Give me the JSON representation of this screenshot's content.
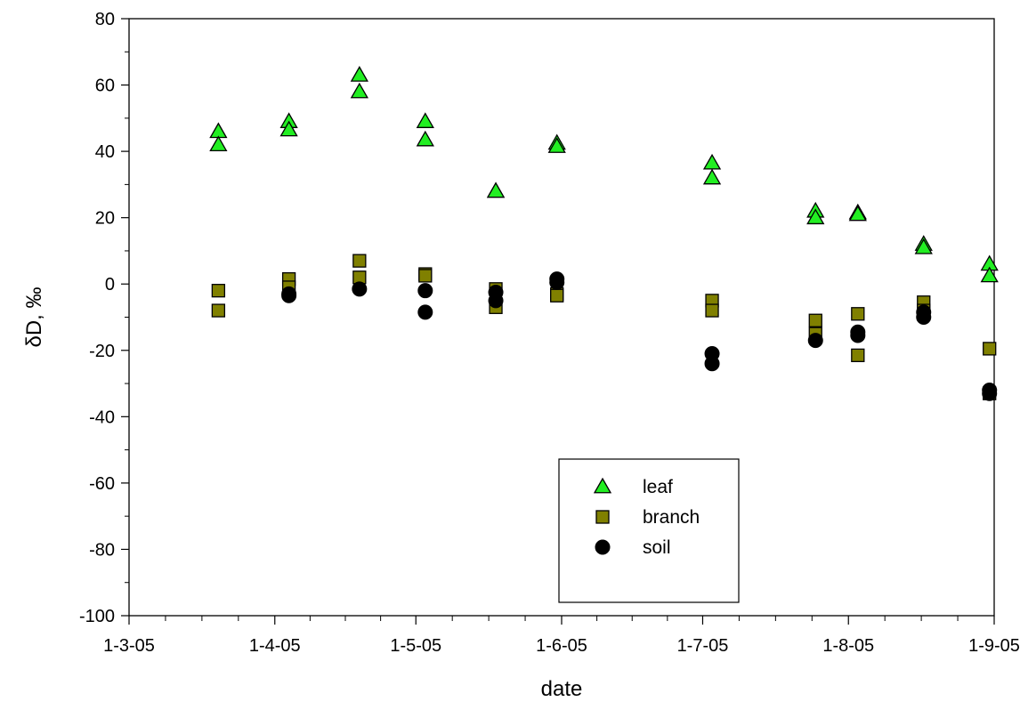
{
  "chart_data": {
    "type": "scatter",
    "xlabel": "date",
    "ylabel": "δD, ‰",
    "ylim": [
      -100,
      80
    ],
    "yticks": [
      -100,
      -80,
      -60,
      -40,
      -20,
      0,
      20,
      40,
      60,
      80
    ],
    "xlim": [
      "2005-03-01",
      "2005-09-01"
    ],
    "xticks": [
      {
        "date": "2005-03-01",
        "label": "1-3-05"
      },
      {
        "date": "2005-04-01",
        "label": "1-4-05"
      },
      {
        "date": "2005-05-01",
        "label": "1-5-05"
      },
      {
        "date": "2005-06-01",
        "label": "1-6-05"
      },
      {
        "date": "2005-07-01",
        "label": "1-7-05"
      },
      {
        "date": "2005-08-01",
        "label": "1-8-05"
      },
      {
        "date": "2005-09-01",
        "label": "1-9-05"
      }
    ],
    "legend_position": "bottom-center",
    "series": [
      {
        "name": "leaf",
        "marker": "triangle",
        "color": "#22ee22",
        "points": [
          {
            "x": "2005-03-20",
            "y": 46
          },
          {
            "x": "2005-03-20",
            "y": 42
          },
          {
            "x": "2005-04-04",
            "y": 49
          },
          {
            "x": "2005-04-04",
            "y": 46.5
          },
          {
            "x": "2005-04-19",
            "y": 63
          },
          {
            "x": "2005-04-19",
            "y": 58
          },
          {
            "x": "2005-05-03",
            "y": 49
          },
          {
            "x": "2005-05-03",
            "y": 43.5
          },
          {
            "x": "2005-05-18",
            "y": 28
          },
          {
            "x": "2005-05-18",
            "y": 28
          },
          {
            "x": "2005-05-31",
            "y": 42.5
          },
          {
            "x": "2005-05-31",
            "y": 41.5
          },
          {
            "x": "2005-07-03",
            "y": 36.5
          },
          {
            "x": "2005-07-03",
            "y": 32
          },
          {
            "x": "2005-07-25",
            "y": 22
          },
          {
            "x": "2005-07-25",
            "y": 20
          },
          {
            "x": "2005-08-03",
            "y": 21.5
          },
          {
            "x": "2005-08-03",
            "y": 21
          },
          {
            "x": "2005-08-17",
            "y": 12
          },
          {
            "x": "2005-08-17",
            "y": 11
          },
          {
            "x": "2005-08-31",
            "y": 6
          },
          {
            "x": "2005-08-31",
            "y": 2.5
          }
        ]
      },
      {
        "name": "branch",
        "marker": "square",
        "color": "#808000",
        "points": [
          {
            "x": "2005-03-20",
            "y": -2
          },
          {
            "x": "2005-03-20",
            "y": -8
          },
          {
            "x": "2005-04-04",
            "y": 1.5
          },
          {
            "x": "2005-04-04",
            "y": -1
          },
          {
            "x": "2005-04-19",
            "y": 7
          },
          {
            "x": "2005-04-19",
            "y": 2
          },
          {
            "x": "2005-05-03",
            "y": 3
          },
          {
            "x": "2005-05-03",
            "y": 2.5
          },
          {
            "x": "2005-05-18",
            "y": -1.5
          },
          {
            "x": "2005-05-18",
            "y": -7
          },
          {
            "x": "2005-05-31",
            "y": -3
          },
          {
            "x": "2005-05-31",
            "y": -3.5
          },
          {
            "x": "2005-07-03",
            "y": -5
          },
          {
            "x": "2005-07-03",
            "y": -8
          },
          {
            "x": "2005-07-25",
            "y": -11
          },
          {
            "x": "2005-07-25",
            "y": -15
          },
          {
            "x": "2005-08-03",
            "y": -9
          },
          {
            "x": "2005-08-03",
            "y": -21.5
          },
          {
            "x": "2005-08-17",
            "y": -5.5
          },
          {
            "x": "2005-08-17",
            "y": -8
          },
          {
            "x": "2005-08-31",
            "y": -19.5
          },
          {
            "x": "2005-08-31",
            "y": -33
          }
        ]
      },
      {
        "name": "soil",
        "marker": "circle",
        "color": "#000000",
        "points": [
          {
            "x": "2005-04-04",
            "y": -3
          },
          {
            "x": "2005-04-04",
            "y": -3.5
          },
          {
            "x": "2005-04-19",
            "y": -1.5
          },
          {
            "x": "2005-05-03",
            "y": -2
          },
          {
            "x": "2005-05-03",
            "y": -8.5
          },
          {
            "x": "2005-05-18",
            "y": -2.5
          },
          {
            "x": "2005-05-18",
            "y": -5
          },
          {
            "x": "2005-05-31",
            "y": 1.5
          },
          {
            "x": "2005-05-31",
            "y": 0.5
          },
          {
            "x": "2005-07-03",
            "y": -21
          },
          {
            "x": "2005-07-03",
            "y": -24
          },
          {
            "x": "2005-07-25",
            "y": -17
          },
          {
            "x": "2005-08-03",
            "y": -14.5
          },
          {
            "x": "2005-08-03",
            "y": -15.5
          },
          {
            "x": "2005-08-17",
            "y": -8.5
          },
          {
            "x": "2005-08-17",
            "y": -10
          },
          {
            "x": "2005-08-31",
            "y": -32
          },
          {
            "x": "2005-08-31",
            "y": -33
          }
        ]
      }
    ]
  }
}
